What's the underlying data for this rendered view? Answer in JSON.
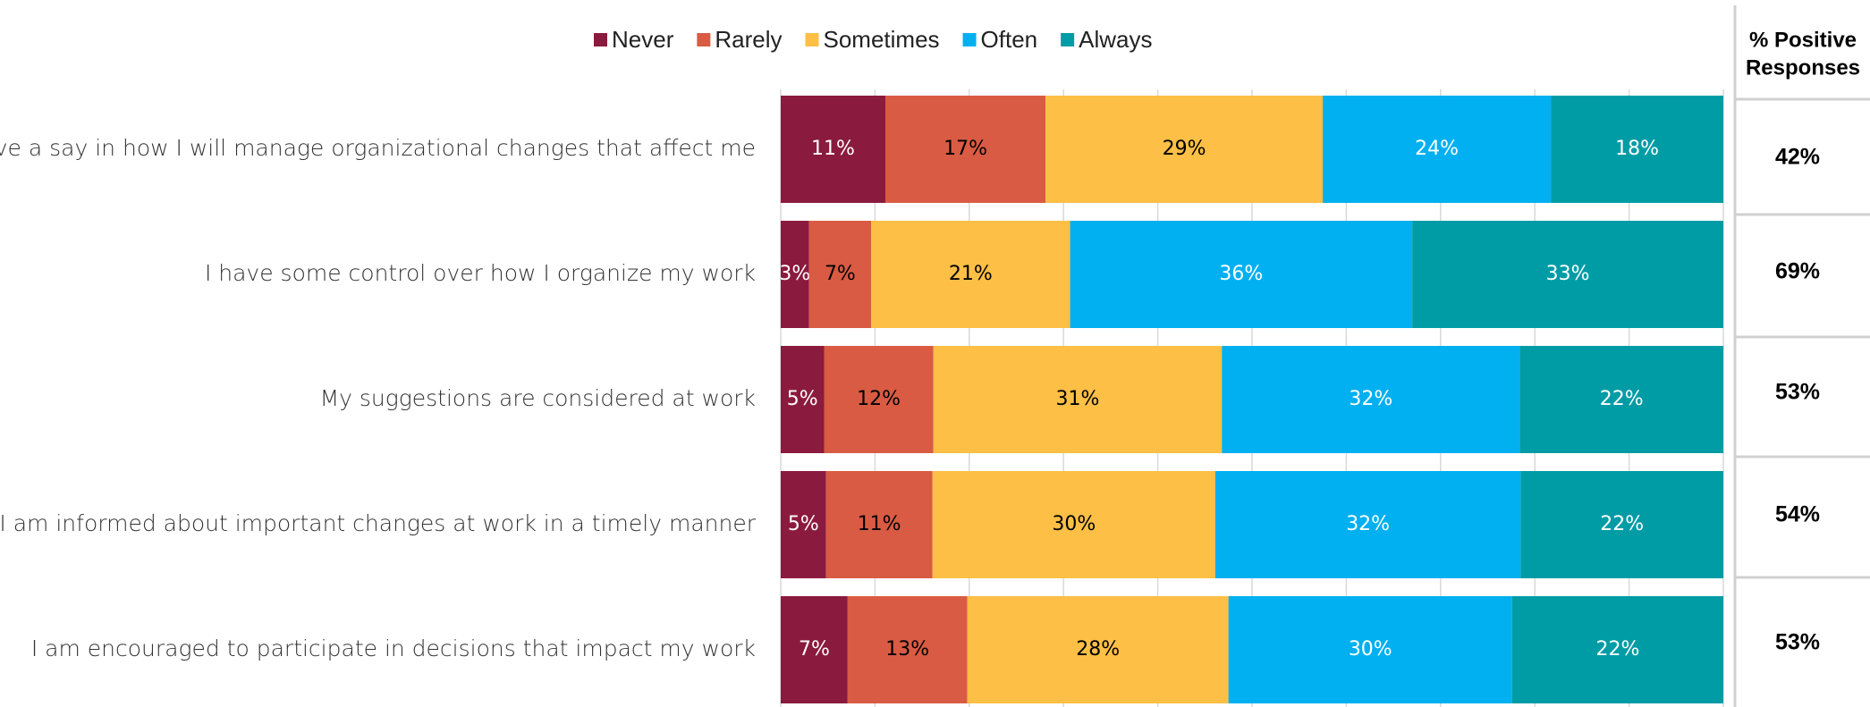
{
  "chart_data": {
    "type": "stacked-barh",
    "categories": [
      "I have a say in how I will manage organizational changes that affect me",
      "I have some control over how I organize my work",
      "My suggestions are considered at work",
      "I am informed about important changes at work in a timely manner",
      "I am encouraged to participate in decisions that impact my work"
    ],
    "series": [
      {
        "name": "Never",
        "color": "#8b1a3f",
        "label_color": "#ffffff",
        "values": [
          11.1,
          3.0,
          4.6,
          4.8,
          7.1
        ],
        "value_labels": [
          "11%",
          "3%",
          "5%",
          "5%",
          "7%"
        ]
      },
      {
        "name": "Rarely",
        "color": "#d95b43",
        "label_color": "#000000",
        "values": [
          17.0,
          6.6,
          11.6,
          11.3,
          12.7
        ],
        "value_labels": [
          "17%",
          "7%",
          "12%",
          "11%",
          "13%"
        ]
      },
      {
        "name": "Sometimes",
        "color": "#fdbf45",
        "label_color": "#000000",
        "values": [
          29.4,
          21.1,
          30.6,
          30.0,
          27.7
        ],
        "value_labels": [
          "29%",
          "21%",
          "31%",
          "30%",
          "28%"
        ]
      },
      {
        "name": "Often",
        "color": "#00b0f0",
        "label_color": "#ffffff",
        "values": [
          24.2,
          36.3,
          31.6,
          32.4,
          30.1
        ],
        "value_labels": [
          "24%",
          "36%",
          "32%",
          "32%",
          "30%"
        ]
      },
      {
        "name": "Always",
        "color": "#009ca6",
        "label_color": "#ffffff",
        "values": [
          18.3,
          33.0,
          21.6,
          21.5,
          22.4
        ],
        "value_labels": [
          "18%",
          "33%",
          "22%",
          "22%",
          "22%"
        ]
      }
    ],
    "xlim": [
      0,
      100
    ],
    "xticks": [
      0,
      10,
      20,
      30,
      40,
      50,
      60,
      70,
      80,
      90,
      100
    ],
    "grid": true,
    "positive_header": [
      "% Positive",
      "Responses"
    ],
    "positive": [
      "42%",
      "69%",
      "53%",
      "54%",
      "53%"
    ]
  }
}
